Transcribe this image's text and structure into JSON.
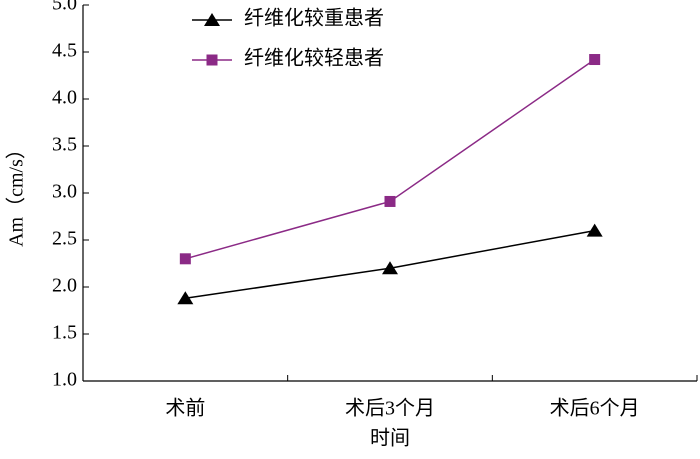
{
  "chart_data": {
    "type": "line",
    "x_label": "时间",
    "y_label": "Am（cm/s）",
    "categories": [
      "术前",
      "术后3个月",
      "术后6个月"
    ],
    "series": [
      {
        "name": "纤维化较重患者",
        "color": "#000000",
        "marker": "triangle",
        "values": [
          1.88,
          2.2,
          2.6
        ]
      },
      {
        "name": "纤维化较轻患者",
        "color": "#8b2a86",
        "marker": "square",
        "values": [
          2.3,
          2.91,
          4.42
        ]
      }
    ],
    "ylim": [
      1.0,
      5.0
    ],
    "yticks": [
      {
        "value": 1.0,
        "label": "1.0"
      },
      1.5,
      {
        "value": 2.0,
        "label": "2.0"
      },
      2.5,
      {
        "value": 3.0,
        "label": "3.0"
      },
      3.5,
      {
        "value": 4.0,
        "label": "4.0"
      },
      4.5,
      {
        "value": 5.0,
        "label": "5.0"
      }
    ],
    "legend": "upper-left"
  }
}
